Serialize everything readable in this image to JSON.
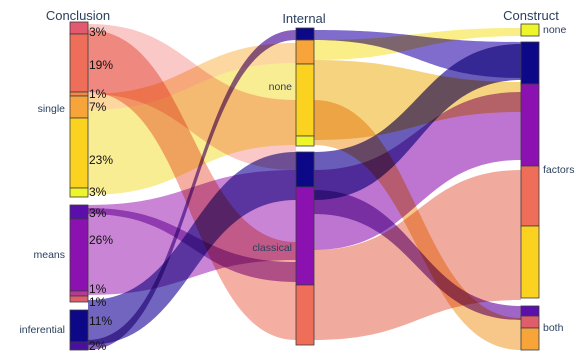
{
  "chart_data": {
    "type": "parallel-categories",
    "dimensions": [
      {
        "title": "Conclusion",
        "categories": [
          {
            "label": "single",
            "segments": [
              3,
              19,
              1,
              7,
              23,
              3
            ]
          },
          {
            "label": "means",
            "segments": [
              3,
              26,
              1,
              1
            ]
          },
          {
            "label": "inferential",
            "segments": [
              11,
              2
            ]
          }
        ],
        "percent_labels": [
          "3%",
          "19%",
          "1%",
          "7%",
          "23%",
          "3%",
          "3%",
          "26%",
          "1%",
          "1%",
          "11%",
          "2%"
        ]
      },
      {
        "title": "Internal",
        "categories": [
          {
            "label": "none"
          },
          {
            "label": "classical"
          }
        ]
      },
      {
        "title": "Construct",
        "categories": [
          {
            "label": "none"
          },
          {
            "label": "factors"
          },
          {
            "label": "both"
          }
        ]
      }
    ],
    "colorscale": [
      "#0d0887",
      "#7e03a8",
      "#cc4778",
      "#f89540",
      "#f0f921"
    ],
    "flows": [
      {
        "path": [
          "single",
          "none",
          "none"
        ],
        "color": "#f0f921"
      },
      {
        "path": [
          "single",
          "none",
          "factors"
        ],
        "color": "#f89540"
      },
      {
        "path": [
          "single",
          "classical",
          "factors"
        ],
        "color": "#e8665e"
      },
      {
        "path": [
          "single",
          "none",
          "both"
        ],
        "color": "#fca636"
      },
      {
        "path": [
          "means",
          "classical",
          "factors"
        ],
        "color": "#9c179e"
      },
      {
        "path": [
          "means",
          "classical",
          "both"
        ],
        "color": "#7e03a8"
      },
      {
        "path": [
          "inferential",
          "classical",
          "factors"
        ],
        "color": "#0d0887"
      }
    ]
  }
}
